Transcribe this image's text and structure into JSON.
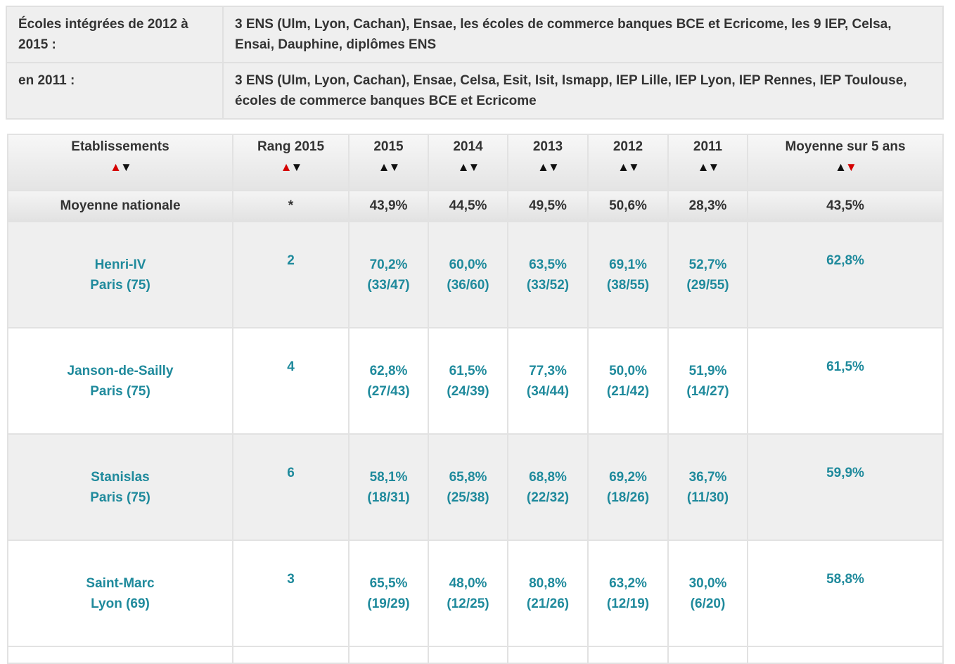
{
  "info": [
    {
      "label": "Écoles intégrées de 2012 à 2015 :",
      "value": "3 ENS (Ulm, Lyon, Cachan), Ensae, les écoles de commerce banques BCE et Ecricome, les 9 IEP, Celsa, Ensai, Dauphine, diplômes ENS"
    },
    {
      "label": "en 2011 :",
      "value": "3 ENS (Ulm, Lyon, Cachan), Ensae, Celsa, Esit, Isit, Ismapp, IEP Lille, IEP Lyon, IEP Rennes, IEP Toulouse, écoles de commerce banques BCE et Ecricome"
    }
  ],
  "headers": [
    "Etablissements",
    "Rang 2015",
    "2015",
    "2014",
    "2013",
    "2012",
    "2011",
    "Moyenne sur 5 ans"
  ],
  "sort_arrows": {
    "up": "▲",
    "down": "▼"
  },
  "national": {
    "name": "Moyenne nationale",
    "rank": "*",
    "values": [
      "43,9%",
      "44,5%",
      "49,5%",
      "50,6%",
      "28,3%"
    ],
    "avg": "43,5%"
  },
  "rows": [
    {
      "name": "Henri-IV",
      "city": "Paris (75)",
      "rank": "2",
      "values": [
        [
          "70,2%",
          "(33/47)"
        ],
        [
          "60,0%",
          "(36/60)"
        ],
        [
          "63,5%",
          "(33/52)"
        ],
        [
          "69,1%",
          "(38/55)"
        ],
        [
          "52,7%",
          "(29/55)"
        ]
      ],
      "avg": "62,8%"
    },
    {
      "name": "Janson-de-Sailly",
      "city": "Paris (75)",
      "rank": "4",
      "values": [
        [
          "62,8%",
          "(27/43)"
        ],
        [
          "61,5%",
          "(24/39)"
        ],
        [
          "77,3%",
          "(34/44)"
        ],
        [
          "50,0%",
          "(21/42)"
        ],
        [
          "51,9%",
          "(14/27)"
        ]
      ],
      "avg": "61,5%"
    },
    {
      "name": "Stanislas",
      "city": "Paris (75)",
      "rank": "6",
      "values": [
        [
          "58,1%",
          "(18/31)"
        ],
        [
          "65,8%",
          "(25/38)"
        ],
        [
          "68,8%",
          "(22/32)"
        ],
        [
          "69,2%",
          "(18/26)"
        ],
        [
          "36,7%",
          "(11/30)"
        ]
      ],
      "avg": "59,9%"
    },
    {
      "name": "Saint-Marc",
      "city": "Lyon (69)",
      "rank": "3",
      "values": [
        [
          "65,5%",
          "(19/29)"
        ],
        [
          "48,0%",
          "(12/25)"
        ],
        [
          "80,8%",
          "(21/26)"
        ],
        [
          "63,2%",
          "(12/19)"
        ],
        [
          "30,0%",
          "(6/20)"
        ]
      ],
      "avg": "58,8%"
    }
  ]
}
